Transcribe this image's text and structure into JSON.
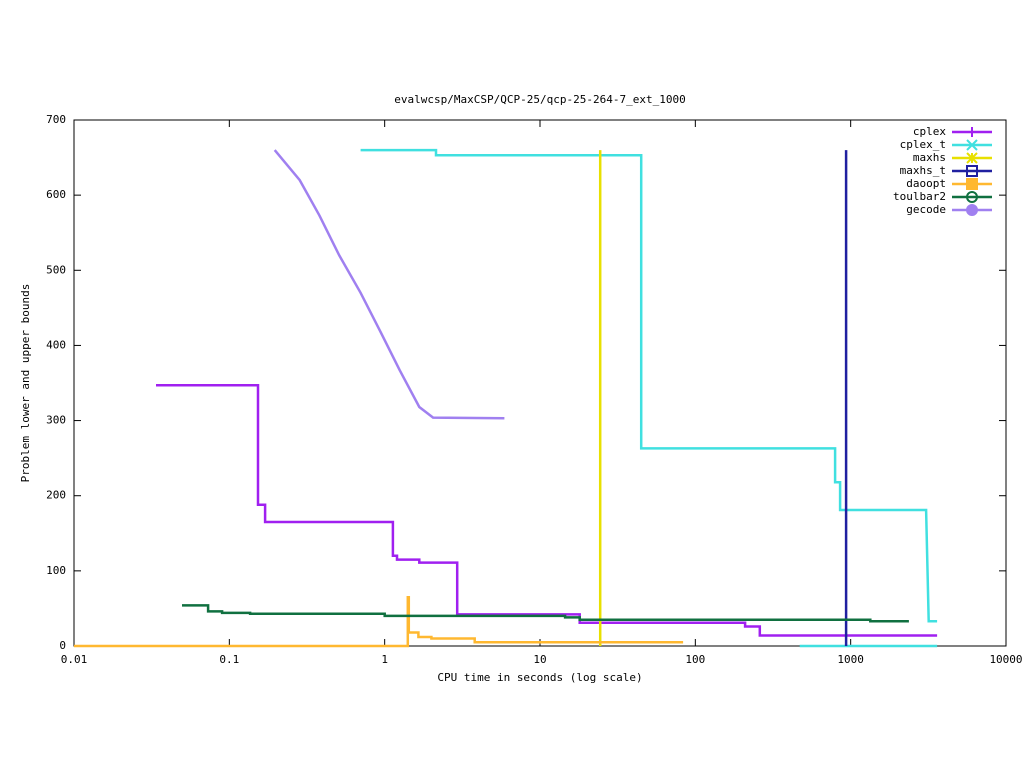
{
  "chart_data": {
    "type": "line",
    "title": "evalwcsp/MaxCSP/QCP-25/qcp-25-264-7_ext_1000",
    "x_label": "CPU time in seconds (log scale)",
    "y_label": "Problem lower and upper bounds",
    "xscale": "log",
    "xlim": [
      0.01,
      10000
    ],
    "xticks": [
      0.01,
      0.1,
      1,
      10,
      100,
      1000,
      10000
    ],
    "ylim": [
      0,
      700
    ],
    "yticks": [
      0,
      100,
      200,
      300,
      400,
      500,
      600,
      700
    ],
    "legend": "top-right",
    "series": [
      {
        "name": "cplex",
        "color": "#a020f0",
        "marker": "plus",
        "x": [
          0.0337,
          0.153,
          0.153,
          0.17,
          0.17,
          1.13,
          1.13,
          1.2,
          1.2,
          1.67,
          1.67,
          2.93,
          2.93,
          18,
          18,
          209,
          209,
          260,
          260,
          3600
        ],
        "values": [
          347,
          347,
          188,
          188,
          165,
          165,
          120,
          120,
          115,
          115,
          111,
          111,
          42,
          42,
          31,
          31,
          26,
          26,
          14,
          14
        ]
      },
      {
        "name": "cplex_t",
        "color": "#40e0e0",
        "marker": "cross",
        "x": [
          0.7,
          2.14,
          2.14,
          44.8,
          44.8,
          794,
          794,
          855,
          855,
          3060,
          3180,
          3600,
          null,
          470,
          3600
        ],
        "values": [
          660,
          660,
          653,
          653,
          263,
          263,
          218,
          218,
          181,
          181,
          33,
          33,
          null,
          0,
          0
        ]
      },
      {
        "name": "maxhs",
        "color": "#e8e000",
        "marker": "star",
        "x": [
          24.4,
          24.4
        ],
        "values": [
          660,
          0
        ]
      },
      {
        "name": "maxhs_t",
        "color": "#2020a0",
        "marker": "square",
        "x": [
          935,
          935
        ],
        "values": [
          660,
          0
        ]
      },
      {
        "name": "daoopt",
        "color": "#ffb830",
        "marker": "filled-square",
        "x": [
          0.01,
          1.41,
          1.41,
          1.43,
          1.43,
          1.65,
          1.65,
          2.0,
          2.0,
          3.8,
          3.8,
          83.4
        ],
        "values": [
          0,
          0,
          65,
          65,
          18,
          18,
          12,
          12,
          10,
          10,
          5,
          5
        ]
      },
      {
        "name": "toulbar2",
        "color": "#107040",
        "marker": "circle",
        "x": [
          0.0496,
          0.073,
          0.073,
          0.0898,
          0.0898,
          0.136,
          0.136,
          1.0,
          1.0,
          14.5,
          14.5,
          18,
          18,
          1337,
          1337,
          2370
        ],
        "values": [
          54,
          54,
          46,
          46,
          44,
          44,
          43,
          43,
          40,
          40,
          38,
          38,
          35,
          35,
          33,
          33
        ]
      },
      {
        "name": "gecode",
        "color": "#a080f0",
        "marker": "filled-circle",
        "x": [
          0.196,
          0.284,
          0.38,
          0.51,
          0.7,
          0.93,
          1.25,
          1.67,
          2.05,
          5.9
        ],
        "values": [
          660,
          620,
          573,
          520,
          470,
          420,
          367,
          318,
          304,
          303
        ]
      }
    ]
  }
}
